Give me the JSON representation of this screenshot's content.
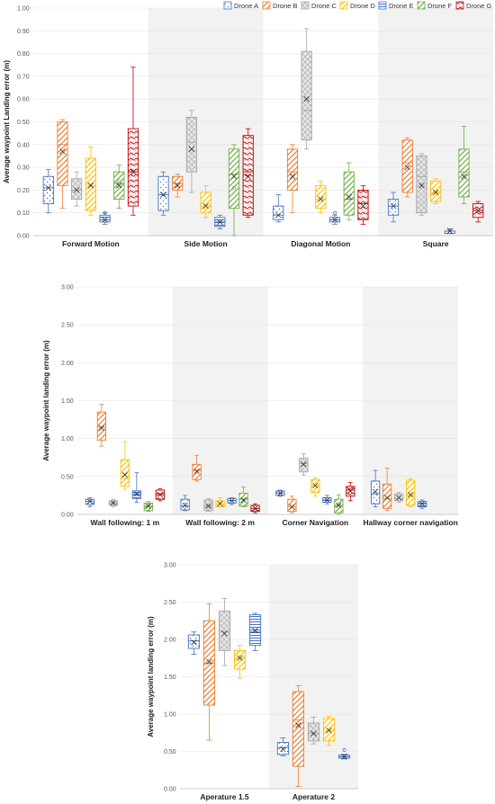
{
  "chart_data": [
    {
      "type": "box",
      "ylabel": "Average waypoint Landing error (m)",
      "ylim": [
        0,
        1.0
      ],
      "yticks": [
        "0.00",
        "0.10",
        "0.20",
        "0.30",
        "0.40",
        "0.50",
        "0.60",
        "0.70",
        "0.80",
        "0.90",
        "1.00"
      ],
      "legend_position": "top-right",
      "categories": [
        "Forward Motion",
        "Side Motion",
        "Diagonal Motion",
        "Square"
      ],
      "series": [
        {
          "name": "Drone A",
          "color": "#4472C4",
          "pattern": "dots",
          "values": [
            {
              "min": 0.1,
              "q1": 0.14,
              "median": 0.21,
              "q3": 0.26,
              "max": 0.29,
              "mean": 0.21
            },
            {
              "min": 0.09,
              "q1": 0.11,
              "median": 0.18,
              "q3": 0.26,
              "max": 0.28,
              "mean": 0.18
            },
            {
              "min": 0.06,
              "q1": 0.07,
              "median": 0.09,
              "q3": 0.13,
              "max": 0.18,
              "mean": 0.09
            },
            {
              "min": 0.06,
              "q1": 0.09,
              "median": 0.13,
              "q3": 0.16,
              "max": 0.19,
              "mean": 0.13
            }
          ]
        },
        {
          "name": "Drone B",
          "color": "#ED7D31",
          "pattern": "diag",
          "values": [
            {
              "min": 0.12,
              "q1": 0.22,
              "median": 0.4,
              "q3": 0.5,
              "max": 0.51,
              "mean": 0.37
            },
            {
              "min": 0.17,
              "q1": 0.2,
              "median": 0.23,
              "q3": 0.26,
              "max": 0.27,
              "mean": 0.22
            },
            {
              "min": 0.1,
              "q1": 0.2,
              "median": 0.28,
              "q3": 0.38,
              "max": 0.4,
              "mean": 0.26
            },
            {
              "min": 0.17,
              "q1": 0.19,
              "median": 0.32,
              "q3": 0.42,
              "max": 0.43,
              "mean": 0.3
            }
          ]
        },
        {
          "name": "Drone C",
          "color": "#A5A5A5",
          "pattern": "hatch",
          "values": [
            {
              "min": 0.13,
              "q1": 0.16,
              "median": 0.2,
              "q3": 0.25,
              "max": 0.28,
              "mean": 0.2
            },
            {
              "min": 0.19,
              "q1": 0.28,
              "median": 0.41,
              "q3": 0.52,
              "max": 0.55,
              "mean": 0.38
            },
            {
              "min": 0.38,
              "q1": 0.42,
              "median": 0.55,
              "q3": 0.81,
              "max": 0.91,
              "mean": 0.6
            },
            {
              "min": 0.09,
              "q1": 0.1,
              "median": 0.26,
              "q3": 0.35,
              "max": 0.36,
              "mean": 0.22
            }
          ]
        },
        {
          "name": "Drone D",
          "color": "#FFC000",
          "pattern": "diag",
          "values": [
            {
              "min": 0.09,
              "q1": 0.11,
              "median": 0.22,
              "q3": 0.34,
              "max": 0.39,
              "mean": 0.22
            },
            {
              "min": 0.08,
              "q1": 0.1,
              "median": 0.13,
              "q3": 0.19,
              "max": 0.22,
              "mean": 0.13
            },
            {
              "min": 0.1,
              "q1": 0.12,
              "median": 0.16,
              "q3": 0.22,
              "max": 0.24,
              "mean": 0.16
            },
            {
              "min": 0.14,
              "q1": 0.15,
              "median": 0.19,
              "q3": 0.24,
              "max": 0.25,
              "mean": 0.19
            }
          ]
        },
        {
          "name": "Drone E",
          "color": "#4472C4",
          "pattern": "hstripe",
          "values": [
            {
              "min": 0.05,
              "q1": 0.06,
              "median": 0.07,
              "q3": 0.09,
              "max": 0.1,
              "mean": 0.07
            },
            {
              "min": 0.03,
              "q1": 0.04,
              "median": 0.06,
              "q3": 0.08,
              "max": 0.09,
              "mean": 0.06
            },
            {
              "min": 0.05,
              "q1": 0.06,
              "median": 0.07,
              "q3": 0.08,
              "max": 0.09,
              "mean": 0.07
            },
            {
              "min": 0.01,
              "q1": 0.01,
              "median": 0.02,
              "q3": 0.02,
              "max": 0.03,
              "mean": 0.02
            }
          ]
        },
        {
          "name": "Drone F",
          "color": "#70AD47",
          "pattern": "diag-green",
          "values": [
            {
              "min": 0.12,
              "q1": 0.16,
              "median": 0.23,
              "q3": 0.28,
              "max": 0.31,
              "mean": 0.22
            },
            {
              "min": 0.0,
              "q1": 0.12,
              "median": 0.27,
              "q3": 0.38,
              "max": 0.4,
              "mean": 0.26
            },
            {
              "min": 0.07,
              "q1": 0.09,
              "median": 0.16,
              "q3": 0.28,
              "max": 0.32,
              "mean": 0.17
            },
            {
              "min": 0.14,
              "q1": 0.17,
              "median": 0.28,
              "q3": 0.38,
              "max": 0.48,
              "mean": 0.26
            }
          ]
        },
        {
          "name": "Drone G",
          "color": "#C00000",
          "pattern": "wave",
          "values": [
            {
              "min": 0.09,
              "q1": 0.13,
              "median": 0.28,
              "q3": 0.47,
              "max": 0.74,
              "mean": 0.28
            },
            {
              "min": 0.08,
              "q1": 0.09,
              "median": 0.28,
              "q3": 0.44,
              "max": 0.47,
              "mean": 0.26
            },
            {
              "min": 0.05,
              "q1": 0.07,
              "median": 0.14,
              "q3": 0.2,
              "max": 0.22,
              "mean": 0.13
            },
            {
              "min": 0.06,
              "q1": 0.08,
              "median": 0.11,
              "q3": 0.14,
              "max": 0.15,
              "mean": 0.11
            }
          ]
        }
      ],
      "outliers": [
        {
          "category": 0,
          "series": 4,
          "value": 0.1
        },
        {
          "category": 0,
          "series": 5,
          "value": 0.24
        },
        {
          "category": 1,
          "series": 5,
          "value": 0.21
        },
        {
          "category": 2,
          "series": 4,
          "value": 0.1
        }
      ]
    },
    {
      "type": "box",
      "ylabel": "Average waypoint landing error  (m)",
      "ylim": [
        0,
        3.0
      ],
      "yticks": [
        "0.00",
        "0.50",
        "1.00",
        "1.50",
        "2.00",
        "2.50",
        "3.00"
      ],
      "categories": [
        "Wall following: 1 m",
        "Wall following: 2 m",
        "Corner Navigation",
        "Hallway corner navigation"
      ],
      "series": [
        {
          "name": "Drone A",
          "color": "#4472C4",
          "pattern": "dots",
          "values": [
            {
              "min": 0.1,
              "q1": 0.13,
              "median": 0.17,
              "q3": 0.2,
              "max": 0.22,
              "mean": 0.17
            },
            {
              "min": 0.05,
              "q1": 0.06,
              "median": 0.11,
              "q3": 0.2,
              "max": 0.25,
              "mean": 0.12
            },
            {
              "min": 0.24,
              "q1": 0.25,
              "median": 0.28,
              "q3": 0.31,
              "max": 0.32,
              "mean": 0.28
            },
            {
              "min": 0.1,
              "q1": 0.14,
              "median": 0.27,
              "q3": 0.44,
              "max": 0.58,
              "mean": 0.3
            }
          ]
        },
        {
          "name": "Drone B",
          "color": "#ED7D31",
          "pattern": "diag",
          "values": [
            {
              "min": 0.9,
              "q1": 0.98,
              "median": 1.15,
              "q3": 1.35,
              "max": 1.45,
              "mean": 1.14
            },
            {
              "min": 0.44,
              "q1": 0.46,
              "median": 0.58,
              "q3": 0.66,
              "max": 0.78,
              "mean": 0.57
            },
            {
              "min": 0.02,
              "q1": 0.04,
              "median": 0.1,
              "q3": 0.2,
              "max": 0.24,
              "mean": 0.1
            },
            {
              "min": 0.05,
              "q1": 0.08,
              "median": 0.21,
              "q3": 0.4,
              "max": 0.61,
              "mean": 0.22
            }
          ]
        },
        {
          "name": "Drone C",
          "color": "#A5A5A5",
          "pattern": "hatch",
          "values": [
            {
              "min": 0.1,
              "q1": 0.12,
              "median": 0.15,
              "q3": 0.18,
              "max": 0.2,
              "mean": 0.15
            },
            {
              "min": 0.04,
              "q1": 0.05,
              "median": 0.11,
              "q3": 0.19,
              "max": 0.21,
              "mean": 0.11
            },
            {
              "min": 0.52,
              "q1": 0.56,
              "median": 0.67,
              "q3": 0.74,
              "max": 0.8,
              "mean": 0.66
            },
            {
              "min": 0.16,
              "q1": 0.18,
              "median": 0.21,
              "q3": 0.27,
              "max": 0.29,
              "mean": 0.22
            }
          ]
        },
        {
          "name": "Drone D",
          "color": "#FFC000",
          "pattern": "diag",
          "values": [
            {
              "min": 0.33,
              "q1": 0.37,
              "median": 0.47,
              "q3": 0.72,
              "max": 0.96,
              "mean": 0.52
            },
            {
              "min": 0.1,
              "q1": 0.1,
              "median": 0.14,
              "q3": 0.18,
              "max": 0.22,
              "mean": 0.14
            },
            {
              "min": 0.24,
              "q1": 0.29,
              "median": 0.38,
              "q3": 0.46,
              "max": 0.48,
              "mean": 0.38
            },
            {
              "min": 0.1,
              "q1": 0.12,
              "median": 0.25,
              "q3": 0.45,
              "max": 0.47,
              "mean": 0.26
            }
          ]
        },
        {
          "name": "Drone E",
          "color": "#4472C4",
          "pattern": "hstripe",
          "values": [
            {
              "min": 0.16,
              "q1": 0.21,
              "median": 0.27,
              "q3": 0.31,
              "max": 0.55,
              "mean": 0.27
            },
            {
              "min": 0.13,
              "q1": 0.15,
              "median": 0.18,
              "q3": 0.21,
              "max": 0.22,
              "mean": 0.18
            },
            {
              "min": 0.14,
              "q1": 0.16,
              "median": 0.19,
              "q3": 0.22,
              "max": 0.25,
              "mean": 0.19
            },
            {
              "min": 0.08,
              "q1": 0.1,
              "median": 0.14,
              "q3": 0.17,
              "max": 0.19,
              "mean": 0.14
            }
          ]
        },
        {
          "name": "Drone F",
          "color": "#70AD47",
          "pattern": "diag-green",
          "values": [
            {
              "min": 0.04,
              "q1": 0.05,
              "median": 0.11,
              "q3": 0.15,
              "max": 0.17,
              "mean": 0.11
            },
            {
              "min": 0.1,
              "q1": 0.11,
              "median": 0.2,
              "q3": 0.28,
              "max": 0.36,
              "mean": 0.19
            },
            {
              "min": 0.0,
              "q1": 0.02,
              "median": 0.12,
              "q3": 0.2,
              "max": 0.26,
              "mean": 0.12
            },
            {
              "min": null,
              "q1": null,
              "median": null,
              "q3": null,
              "max": null,
              "mean": null
            }
          ]
        },
        {
          "name": "Drone G",
          "color": "#C00000",
          "pattern": "wave",
          "values": [
            {
              "min": 0.18,
              "q1": 0.2,
              "median": 0.26,
              "q3": 0.32,
              "max": 0.34,
              "mean": 0.26
            },
            {
              "min": 0.02,
              "q1": 0.04,
              "median": 0.08,
              "q3": 0.12,
              "max": 0.14,
              "mean": 0.08
            },
            {
              "min": 0.18,
              "q1": 0.24,
              "median": 0.32,
              "q3": 0.37,
              "max": 0.42,
              "mean": 0.31
            },
            {
              "min": null,
              "q1": null,
              "median": null,
              "q3": null,
              "max": null,
              "mean": null
            }
          ]
        }
      ],
      "outliers": []
    },
    {
      "type": "box",
      "ylabel": "Average waypoint landing error  (m)",
      "ylim": [
        0,
        3.0
      ],
      "yticks": [
        "0.00",
        "0.50",
        "1.00",
        "1.50",
        "2.00",
        "2.50",
        "3.00"
      ],
      "categories": [
        "Aperature 1.5",
        "Aperature 2"
      ],
      "series": [
        {
          "name": "Drone A",
          "color": "#4472C4",
          "pattern": "dots",
          "values": [
            {
              "min": 1.8,
              "q1": 1.88,
              "median": 1.98,
              "q3": 2.06,
              "max": 2.1,
              "mean": 1.96
            },
            {
              "min": 0.44,
              "q1": 0.46,
              "median": 0.55,
              "q3": 0.62,
              "max": 0.68,
              "mean": 0.53
            }
          ]
        },
        {
          "name": "Drone B",
          "color": "#ED7D31",
          "pattern": "diag",
          "values": [
            {
              "min": 0.65,
              "q1": 1.12,
              "median": 1.68,
              "q3": 2.25,
              "max": 2.48,
              "mean": 1.7
            },
            {
              "min": 0.03,
              "q1": 0.3,
              "median": 0.92,
              "q3": 1.3,
              "max": 1.38,
              "mean": 0.85
            }
          ]
        },
        {
          "name": "Drone C",
          "color": "#A5A5A5",
          "pattern": "hatch",
          "values": [
            {
              "min": 1.65,
              "q1": 1.85,
              "median": 2.1,
              "q3": 2.38,
              "max": 2.55,
              "mean": 2.08
            },
            {
              "min": 0.6,
              "q1": 0.64,
              "median": 0.74,
              "q3": 0.88,
              "max": 0.96,
              "mean": 0.74
            }
          ]
        },
        {
          "name": "Drone D",
          "color": "#FFC000",
          "pattern": "diag",
          "values": [
            {
              "min": 1.48,
              "q1": 1.6,
              "median": 1.75,
              "q3": 1.85,
              "max": 1.92,
              "mean": 1.75
            },
            {
              "min": 0.58,
              "q1": 0.64,
              "median": 0.78,
              "q3": 0.94,
              "max": 0.97,
              "mean": 0.78
            }
          ]
        },
        {
          "name": "Drone E",
          "color": "#4472C4",
          "pattern": "hstripe",
          "values": [
            {
              "min": 1.85,
              "q1": 1.92,
              "median": 2.1,
              "q3": 2.33,
              "max": 2.35,
              "mean": 2.12
            },
            {
              "min": 0.4,
              "q1": 0.41,
              "median": 0.43,
              "q3": 0.45,
              "max": 0.46,
              "mean": 0.43
            }
          ]
        }
      ],
      "outliers": [
        {
          "category": 1,
          "series": 4,
          "value": 0.52
        }
      ]
    }
  ]
}
